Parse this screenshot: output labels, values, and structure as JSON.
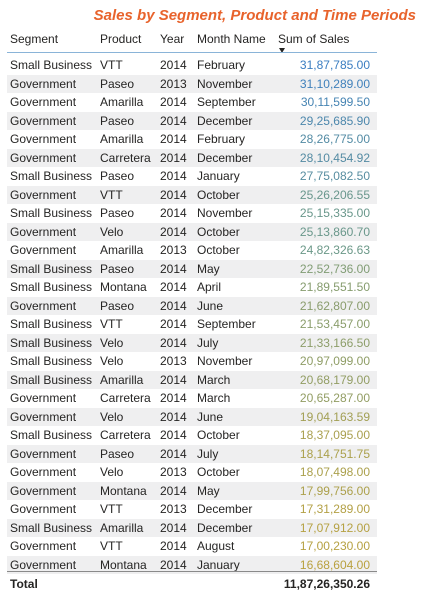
{
  "title": "Sales by Segment, Product and Time Periods",
  "colors": {
    "title": "#e8632c",
    "sales_high": "#3a7dc1",
    "sales_mid": "#6f9a84",
    "sales_low": "#b9a13f"
  },
  "chart_data": {
    "type": "table",
    "title": "Sales by Segment, Product and Time Periods",
    "columns": [
      "Segment",
      "Product",
      "Year",
      "Month Name",
      "Sum of Sales"
    ],
    "sort": "Sum of Sales descending",
    "rows": [
      [
        "Small Business",
        "VTT",
        "2014",
        "February",
        "31,87,785.00"
      ],
      [
        "Government",
        "Paseo",
        "2013",
        "November",
        "31,10,289.00"
      ],
      [
        "Government",
        "Amarilla",
        "2014",
        "September",
        "30,11,599.50"
      ],
      [
        "Government",
        "Paseo",
        "2014",
        "December",
        "29,25,685.90"
      ],
      [
        "Government",
        "Amarilla",
        "2014",
        "February",
        "28,26,775.00"
      ],
      [
        "Government",
        "Carretera",
        "2014",
        "December",
        "28,10,454.92"
      ],
      [
        "Small Business",
        "Paseo",
        "2014",
        "January",
        "27,75,082.50"
      ],
      [
        "Government",
        "VTT",
        "2014",
        "October",
        "25,26,206.55"
      ],
      [
        "Small Business",
        "Paseo",
        "2014",
        "November",
        "25,15,335.00"
      ],
      [
        "Government",
        "Velo",
        "2014",
        "October",
        "25,13,860.70"
      ],
      [
        "Government",
        "Amarilla",
        "2013",
        "October",
        "24,82,326.63"
      ],
      [
        "Small Business",
        "Paseo",
        "2014",
        "May",
        "22,52,736.00"
      ],
      [
        "Small Business",
        "Montana",
        "2014",
        "April",
        "21,89,551.50"
      ],
      [
        "Government",
        "Paseo",
        "2014",
        "June",
        "21,62,807.00"
      ],
      [
        "Small Business",
        "VTT",
        "2014",
        "September",
        "21,53,457.00"
      ],
      [
        "Small Business",
        "Velo",
        "2014",
        "July",
        "21,33,166.50"
      ],
      [
        "Small Business",
        "Velo",
        "2013",
        "November",
        "20,97,099.00"
      ],
      [
        "Small Business",
        "Amarilla",
        "2014",
        "March",
        "20,68,179.00"
      ],
      [
        "Government",
        "Carretera",
        "2014",
        "March",
        "20,65,287.00"
      ],
      [
        "Government",
        "Velo",
        "2014",
        "June",
        "19,04,163.59"
      ],
      [
        "Small Business",
        "Carretera",
        "2014",
        "October",
        "18,37,095.00"
      ],
      [
        "Government",
        "Paseo",
        "2014",
        "July",
        "18,14,751.75"
      ],
      [
        "Government",
        "Velo",
        "2013",
        "October",
        "18,07,498.00"
      ],
      [
        "Government",
        "Montana",
        "2014",
        "May",
        "17,99,756.00"
      ],
      [
        "Government",
        "VTT",
        "2013",
        "December",
        "17,31,289.00"
      ],
      [
        "Small Business",
        "Amarilla",
        "2014",
        "December",
        "17,07,912.00"
      ],
      [
        "Government",
        "VTT",
        "2014",
        "August",
        "17,00,230.00"
      ],
      [
        "Government",
        "Montana",
        "2014",
        "January",
        "16,68,604.00"
      ]
    ],
    "total_label": "Total",
    "total_value": "11,87,26,350.26"
  }
}
